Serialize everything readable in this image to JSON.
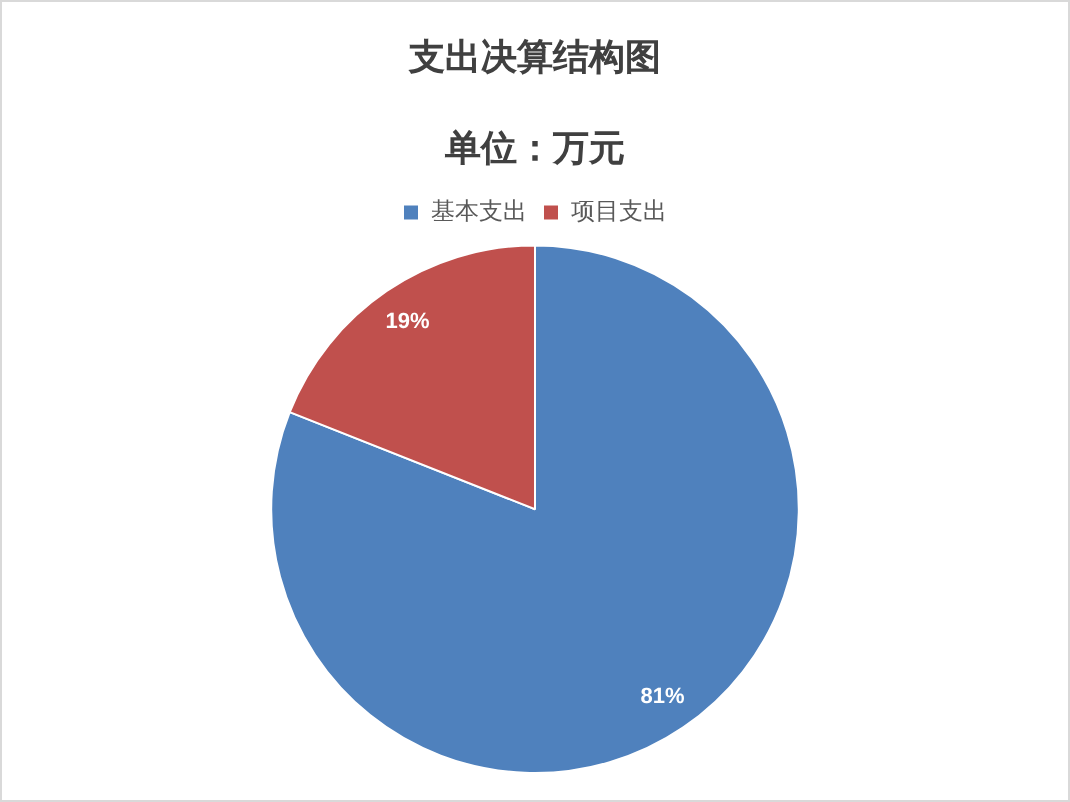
{
  "chart_data": {
    "type": "pie",
    "title": "支出决算结构图",
    "subtitle": "单位：万元",
    "categories": [
      "基本支出",
      "项目支出"
    ],
    "values": [
      81,
      19
    ],
    "colors": [
      "#4f81bd",
      "#c0504d"
    ],
    "value_labels": [
      "81%",
      "19%"
    ],
    "legend": "top"
  }
}
